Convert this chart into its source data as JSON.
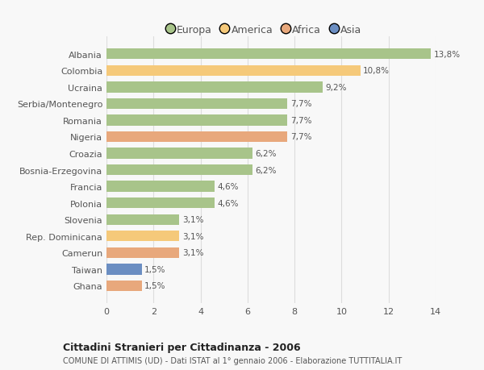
{
  "categories": [
    "Albania",
    "Colombia",
    "Ucraina",
    "Serbia/Montenegro",
    "Romania",
    "Nigeria",
    "Croazia",
    "Bosnia-Erzegovina",
    "Francia",
    "Polonia",
    "Slovenia",
    "Rep. Dominicana",
    "Camerun",
    "Taiwan",
    "Ghana"
  ],
  "values": [
    13.8,
    10.8,
    9.2,
    7.7,
    7.7,
    7.7,
    6.2,
    6.2,
    4.6,
    4.6,
    3.1,
    3.1,
    3.1,
    1.5,
    1.5
  ],
  "labels": [
    "13,8%",
    "10,8%",
    "9,2%",
    "7,7%",
    "7,7%",
    "7,7%",
    "6,2%",
    "6,2%",
    "4,6%",
    "4,6%",
    "3,1%",
    "3,1%",
    "3,1%",
    "1,5%",
    "1,5%"
  ],
  "colors": [
    "#a8c48a",
    "#f5c97a",
    "#a8c48a",
    "#a8c48a",
    "#a8c48a",
    "#e8a87c",
    "#a8c48a",
    "#a8c48a",
    "#a8c48a",
    "#a8c48a",
    "#a8c48a",
    "#f5c97a",
    "#e8a87c",
    "#6b8ec2",
    "#e8a87c"
  ],
  "legend_labels": [
    "Europa",
    "America",
    "Africa",
    "Asia"
  ],
  "legend_colors": [
    "#a8c48a",
    "#f5c97a",
    "#e8a87c",
    "#6b8ec2"
  ],
  "title": "Cittadini Stranieri per Cittadinanza - 2006",
  "subtitle": "COMUNE DI ATTIMIS (UD) - Dati ISTAT al 1° gennaio 2006 - Elaborazione TUTTITALIA.IT",
  "xlim": [
    0,
    14
  ],
  "xticks": [
    0,
    2,
    4,
    6,
    8,
    10,
    12,
    14
  ],
  "bg_color": "#f8f8f8",
  "grid_color": "#dddddd"
}
